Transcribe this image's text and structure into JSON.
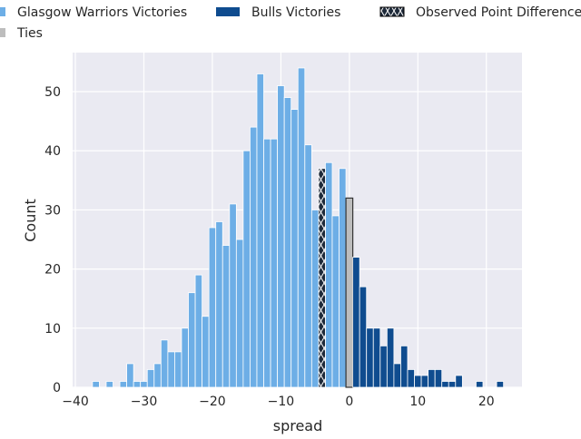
{
  "chart_data": {
    "type": "bar",
    "title": "",
    "xlabel": "spread",
    "ylabel": "Count",
    "xlim": [
      -40.4,
      25.2
    ],
    "ylim": [
      0,
      56.6
    ],
    "xticks": [
      -40,
      -30,
      -20,
      -10,
      0,
      10,
      20
    ],
    "xtick_labels": [
      "−40",
      "−30",
      "−20",
      "−10",
      "0",
      "10",
      "20"
    ],
    "yticks": [
      0,
      10,
      20,
      30,
      40,
      50
    ],
    "ytick_labels": [
      "0",
      "10",
      "20",
      "30",
      "40",
      "50"
    ],
    "grid": true,
    "legend_position": "top",
    "legend": [
      {
        "label": "Glasgow Warriors Victories",
        "color": "#6daee6",
        "style": "solid"
      },
      {
        "label": "Bulls Victories",
        "color": "#0f4c8f",
        "style": "solid"
      },
      {
        "label": "Observed Point Difference",
        "color": "#1e2a3a",
        "style": "hatched"
      },
      {
        "label": "Ties",
        "color": "#bdbdbd",
        "style": "solid"
      }
    ],
    "series": [
      {
        "name": "Glasgow Warriors Victories",
        "color": "#6daee6",
        "x": [
          -37,
          -35,
          -33,
          -32,
          -31,
          -30,
          -29,
          -28,
          -27,
          -26,
          -25,
          -24,
          -23,
          -22,
          -21,
          -20,
          -19,
          -18,
          -17,
          -16,
          -15,
          -14,
          -13,
          -12,
          -11,
          -10,
          -9,
          -8,
          -7,
          -6,
          -5,
          -3,
          -2,
          -1
        ],
        "values": [
          1,
          1,
          1,
          4,
          1,
          1,
          3,
          4,
          8,
          6,
          6,
          10,
          16,
          19,
          12,
          27,
          28,
          24,
          31,
          25,
          40,
          44,
          53,
          42,
          42,
          51,
          49,
          47,
          54,
          41,
          30,
          38,
          29,
          37
        ]
      },
      {
        "name": "Observed Point Difference",
        "color": "#1e2a3a",
        "x": [
          -4
        ],
        "values": [
          37
        ]
      },
      {
        "name": "Ties",
        "color": "#bdbdbd",
        "x": [
          0
        ],
        "values": [
          32
        ]
      },
      {
        "name": "Bulls Victories",
        "color": "#0f4c8f",
        "x": [
          1,
          2,
          3,
          4,
          5,
          6,
          7,
          8,
          9,
          10,
          11,
          12,
          13,
          14,
          15,
          16,
          19,
          22
        ],
        "values": [
          22,
          17,
          10,
          10,
          7,
          10,
          4,
          7,
          3,
          2,
          2,
          3,
          3,
          1,
          1,
          2,
          1,
          1
        ]
      }
    ]
  }
}
